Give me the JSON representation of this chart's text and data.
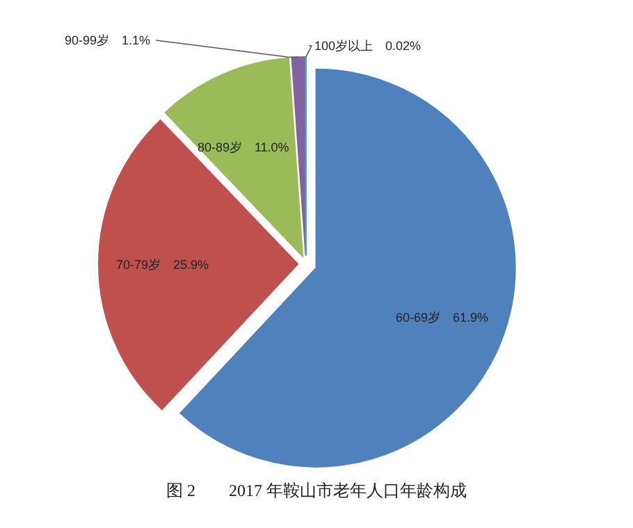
{
  "chart_data": {
    "type": "pie",
    "title": "图 2　　2017 年鞍山市老年人口年龄构成",
    "categories": [
      "60-69岁",
      "70-79岁",
      "80-89岁",
      "90-99岁",
      "100岁以上"
    ],
    "values": [
      61.9,
      25.9,
      11.0,
      1.1,
      0.02
    ],
    "value_labels": [
      "61.9%",
      "25.9%",
      "11.0%",
      "1.1%",
      "0.02%"
    ],
    "colors": [
      "#4f81bd",
      "#c0504d",
      "#9bbb59",
      "#8064a2",
      "#4bacc6"
    ]
  }
}
